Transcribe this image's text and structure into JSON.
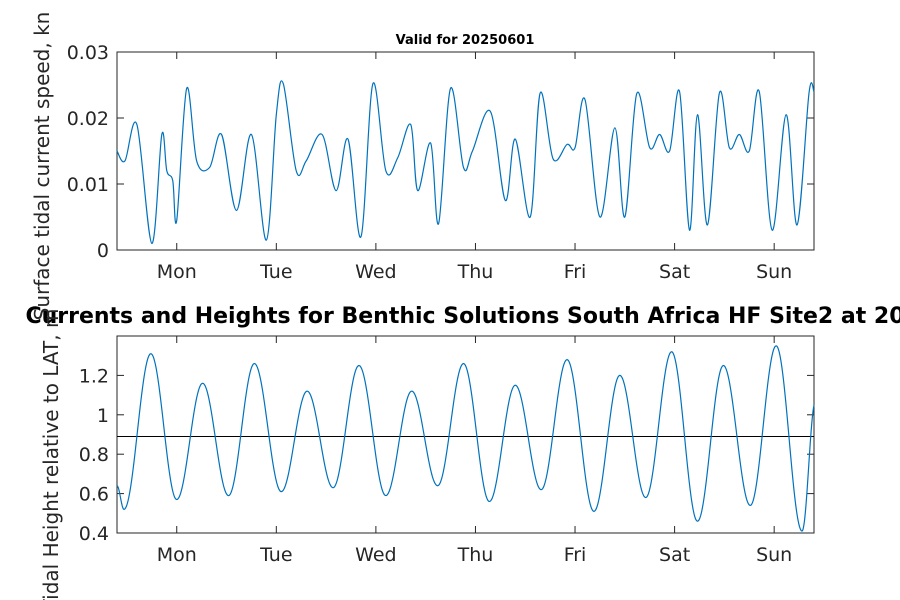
{
  "chart_data": [
    {
      "type": "line",
      "title": "Valid for 20250601",
      "ylabel": "Surface tidal current speed, kn",
      "xlabel": "",
      "x_range_days": [
        -0.6,
        6.4
      ],
      "x_ticks": [
        0,
        1,
        2,
        3,
        4,
        5,
        6
      ],
      "x_tick_labels": [
        "Mon",
        "Tue",
        "Wed",
        "Thu",
        "Fri",
        "Sat",
        "Sun"
      ],
      "ylim": [
        0,
        0.03
      ],
      "y_ticks": [
        0,
        0.01,
        0.02,
        0.03
      ],
      "y_tick_labels": [
        "0",
        "0.01",
        "0.02",
        "0.03"
      ],
      "grid": false,
      "color": "#0072bd",
      "series": [
        {
          "x": [
            -0.6,
            -0.52,
            -0.4,
            -0.25,
            -0.15,
            -0.1,
            0,
            -0.04,
            0.1,
            0.2,
            0.33,
            0.45,
            0.6,
            0.75,
            0.9,
            1.0,
            1.07,
            1.2,
            1.3,
            1.46,
            1.6,
            1.72,
            1.85,
            1.97,
            2.1,
            2.22,
            2.35,
            2.42,
            2.55,
            2.63,
            2.75,
            2.88,
            2.97,
            3.15,
            3.3,
            3.4,
            3.55,
            3.65,
            3.78,
            3.92,
            4.0,
            4.1,
            4.25,
            4.4,
            4.5,
            4.62,
            4.75,
            4.85,
            4.95,
            5.05,
            5.15,
            5.23,
            5.33,
            5.45,
            5.55,
            5.65,
            5.75,
            5.85,
            5.98,
            6.12,
            6.23,
            6.35,
            6.4
          ],
          "y": [
            0.015,
            0.0135,
            0.019,
            0.001,
            0.0175,
            0.012,
            0.0045,
            0.0105,
            0.0245,
            0.0135,
            0.0125,
            0.0175,
            0.006,
            0.0175,
            0.0015,
            0.0205,
            0.0252,
            0.012,
            0.0135,
            0.0175,
            0.009,
            0.0168,
            0.002,
            0.0252,
            0.012,
            0.014,
            0.019,
            0.009,
            0.0162,
            0.004,
            0.0245,
            0.0125,
            0.015,
            0.021,
            0.0075,
            0.0168,
            0.005,
            0.0238,
            0.0138,
            0.016,
            0.0155,
            0.0228,
            0.005,
            0.0185,
            0.005,
            0.0237,
            0.0155,
            0.0175,
            0.015,
            0.024,
            0.003,
            0.0205,
            0.0038,
            0.0238,
            0.0155,
            0.0175,
            0.015,
            0.024,
            0.003,
            0.0205,
            0.0038,
            0.0238,
            0.024
          ]
        }
      ]
    },
    {
      "type": "line",
      "title": "Currents and Heights for Benthic Solutions South Africa HF Site2 at 20",
      "ylabel": "Tidal Height relative to LAT, m",
      "xlabel": "",
      "x_range_days": [
        -0.6,
        6.4
      ],
      "x_ticks": [
        0,
        1,
        2,
        3,
        4,
        5,
        6
      ],
      "x_tick_labels": [
        "Mon",
        "Tue",
        "Wed",
        "Thu",
        "Fri",
        "Sat",
        "Sun"
      ],
      "ylim": [
        0.4,
        1.4
      ],
      "y_ticks": [
        0.4,
        0.6,
        0.8,
        1,
        1.2
      ],
      "y_tick_labels": [
        "0.4",
        "0.6",
        "0.8",
        "1",
        "1.2"
      ],
      "grid": false,
      "color": "#0072bd",
      "reference_line": 0.89,
      "extrema": [
        {
          "x": -0.53,
          "y": 0.52
        },
        {
          "x": -0.26,
          "y": 1.31
        },
        {
          "x": 0.0,
          "y": 0.57
        },
        {
          "x": 0.26,
          "y": 1.16
        },
        {
          "x": 0.52,
          "y": 0.59
        },
        {
          "x": 0.78,
          "y": 1.26
        },
        {
          "x": 1.05,
          "y": 0.61
        },
        {
          "x": 1.31,
          "y": 1.12
        },
        {
          "x": 1.57,
          "y": 0.63
        },
        {
          "x": 1.83,
          "y": 1.25
        },
        {
          "x": 2.1,
          "y": 0.59
        },
        {
          "x": 2.36,
          "y": 1.12
        },
        {
          "x": 2.62,
          "y": 0.64
        },
        {
          "x": 2.88,
          "y": 1.26
        },
        {
          "x": 3.14,
          "y": 0.56
        },
        {
          "x": 3.4,
          "y": 1.15
        },
        {
          "x": 3.66,
          "y": 0.62
        },
        {
          "x": 3.92,
          "y": 1.28
        },
        {
          "x": 4.19,
          "y": 0.51
        },
        {
          "x": 4.45,
          "y": 1.2
        },
        {
          "x": 4.71,
          "y": 0.58
        },
        {
          "x": 4.97,
          "y": 1.32
        },
        {
          "x": 5.23,
          "y": 0.46
        },
        {
          "x": 5.49,
          "y": 1.25
        },
        {
          "x": 5.76,
          "y": 0.54
        },
        {
          "x": 6.02,
          "y": 1.35
        },
        {
          "x": 6.28,
          "y": 0.41
        }
      ],
      "end_value": 1.05
    }
  ]
}
